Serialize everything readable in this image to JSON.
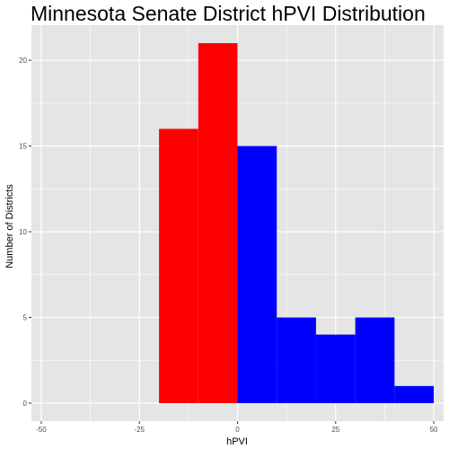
{
  "chart_data": {
    "type": "bar",
    "title": "Minnesota Senate District hPVI Distribution",
    "xlabel": "hPVI",
    "ylabel": "Number of Districts",
    "xlim": [
      -52.5,
      52.5
    ],
    "ylim": [
      -1.05,
      22.05
    ],
    "x_ticks": [
      -50,
      -25,
      0,
      25,
      50
    ],
    "y_ticks": [
      0,
      5,
      10,
      15,
      20
    ],
    "grid": true,
    "bins": [
      {
        "x0": -20,
        "x1": -10,
        "count": 16,
        "color": "#ff0000"
      },
      {
        "x0": -10,
        "x1": 0,
        "count": 21,
        "color": "#ff0000"
      },
      {
        "x0": 0,
        "x1": 10,
        "count": 15,
        "color": "#0000ff"
      },
      {
        "x0": 10,
        "x1": 20,
        "count": 5,
        "color": "#0000ff"
      },
      {
        "x0": 20,
        "x1": 30,
        "count": 4,
        "color": "#0000ff"
      },
      {
        "x0": 30,
        "x1": 40,
        "count": 5,
        "color": "#0000ff"
      },
      {
        "x0": 40,
        "x1": 50,
        "count": 1,
        "color": "#0000ff"
      }
    ]
  },
  "colors": {
    "panel_background": "#e5e5e5",
    "grid": "#ffffff",
    "republican": "#ff0000",
    "democratic": "#0000ff"
  }
}
